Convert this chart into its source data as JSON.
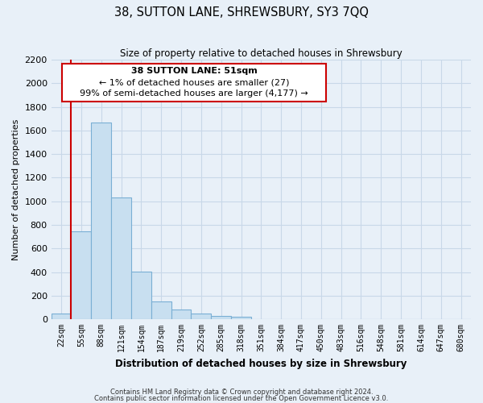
{
  "title": "38, SUTTON LANE, SHREWSBURY, SY3 7QQ",
  "subtitle": "Size of property relative to detached houses in Shrewsbury",
  "xlabel": "Distribution of detached houses by size in Shrewsbury",
  "ylabel": "Number of detached properties",
  "bar_labels": [
    "22sqm",
    "55sqm",
    "88sqm",
    "121sqm",
    "154sqm",
    "187sqm",
    "219sqm",
    "252sqm",
    "285sqm",
    "318sqm",
    "351sqm",
    "384sqm",
    "417sqm",
    "450sqm",
    "483sqm",
    "516sqm",
    "548sqm",
    "581sqm",
    "614sqm",
    "647sqm",
    "680sqm"
  ],
  "bar_values": [
    50,
    745,
    1670,
    1035,
    405,
    150,
    80,
    45,
    30,
    20,
    0,
    0,
    0,
    0,
    0,
    0,
    0,
    0,
    0,
    0,
    0
  ],
  "bar_color": "#c8dff0",
  "bar_edge_color": "#7aafd4",
  "highlight_color": "#cc0000",
  "highlight_bar_index": 1,
  "ylim": [
    0,
    2200
  ],
  "yticks": [
    0,
    200,
    400,
    600,
    800,
    1000,
    1200,
    1400,
    1600,
    1800,
    2000,
    2200
  ],
  "annotation_line1": "38 SUTTON LANE: 51sqm",
  "annotation_line2": "← 1% of detached houses are smaller (27)",
  "annotation_line3": "99% of semi-detached houses are larger (4,177) →",
  "footer_line1": "Contains HM Land Registry data © Crown copyright and database right 2024.",
  "footer_line2": "Contains public sector information licensed under the Open Government Licence v3.0.",
  "grid_color": "#c8d8e8",
  "background_color": "#e8f0f8"
}
